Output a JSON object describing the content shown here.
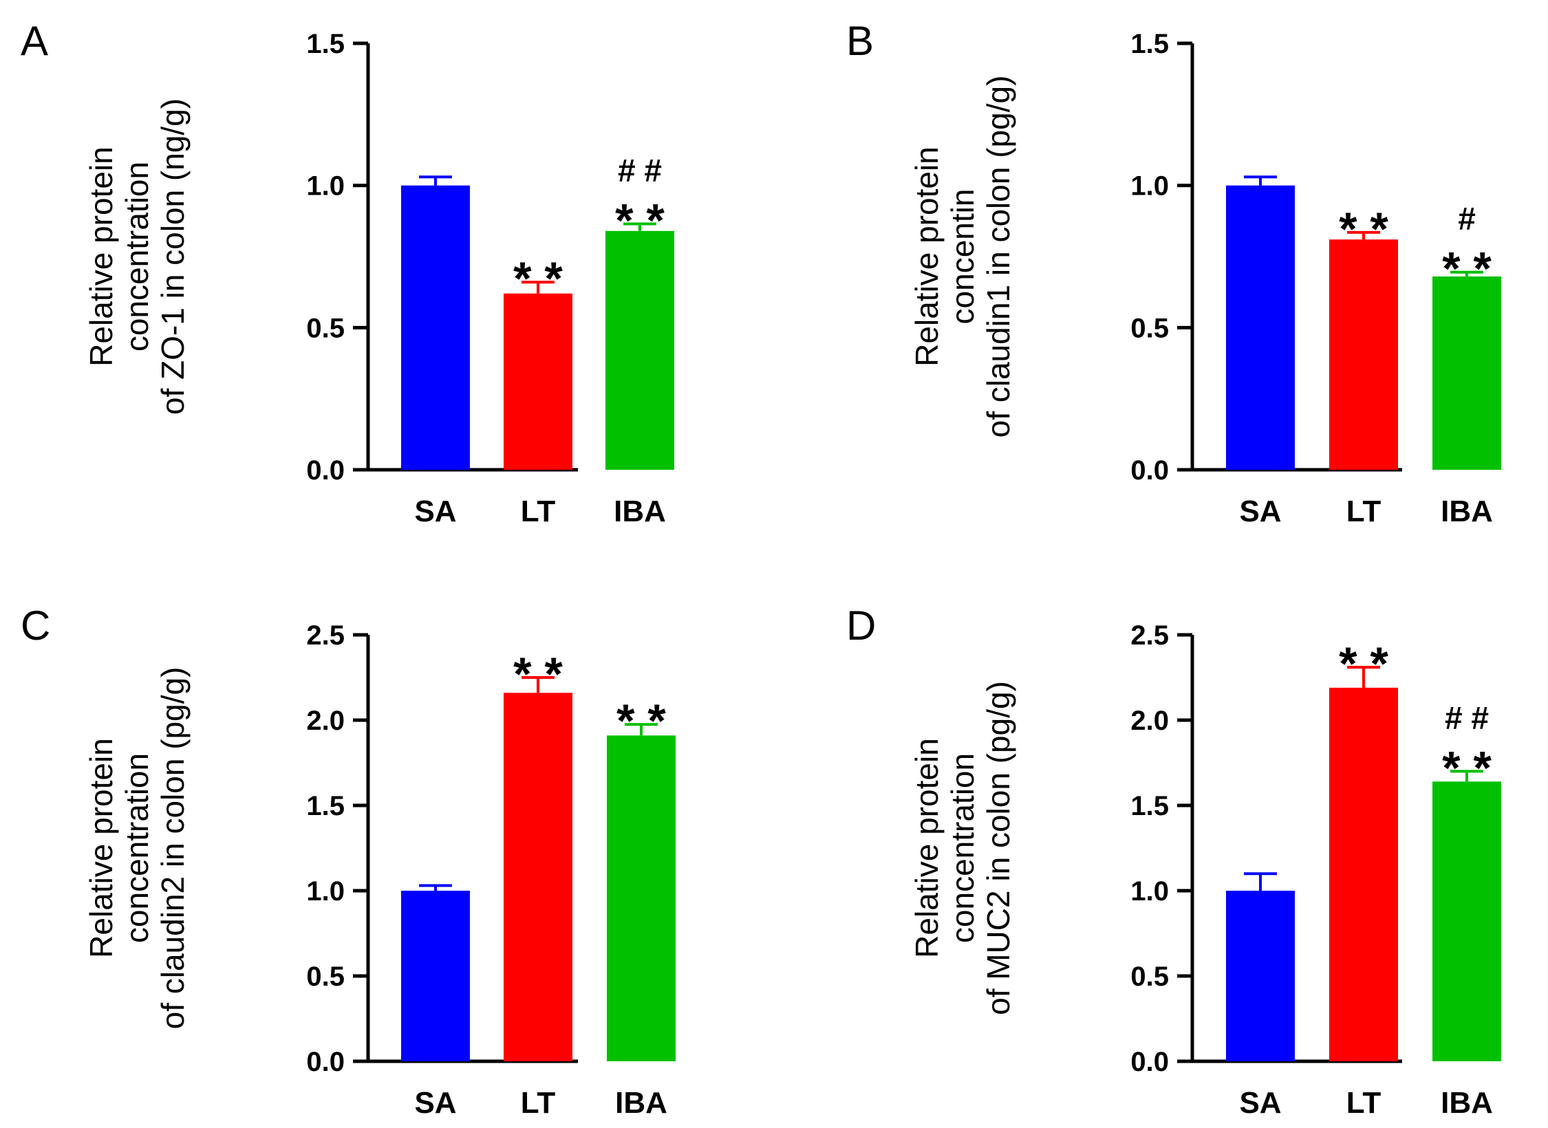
{
  "chart_data": [
    {
      "panel": "A",
      "type": "bar",
      "categories": [
        "SA",
        "LT",
        "IBA"
      ],
      "values": [
        1.0,
        0.62,
        0.84
      ],
      "errors": [
        0.03,
        0.04,
        0.025
      ],
      "colors": [
        "#0000ff",
        "#ff0000",
        "#00c000"
      ],
      "ylabel_lines": [
        "Relative protein",
        "concentration",
        "of ZO-1 in colon  (ng/g)"
      ],
      "ylim": [
        0,
        1.5
      ],
      "yticks": [
        "0.0",
        "0.5",
        "1.0",
        "1.5"
      ],
      "significance": [
        "",
        "* *",
        "* *"
      ],
      "hash_marks": [
        "",
        "",
        "# #"
      ]
    },
    {
      "panel": "B",
      "type": "bar",
      "categories": [
        "SA",
        "LT",
        "IBA"
      ],
      "values": [
        1.0,
        0.81,
        0.68
      ],
      "errors": [
        0.03,
        0.025,
        0.015
      ],
      "colors": [
        "#0000ff",
        "#ff0000",
        "#00c000"
      ],
      "ylabel_lines": [
        "Relative protein",
        "concentin",
        "of claudin1 in colon (pg/g)"
      ],
      "ylim": [
        0,
        1.5
      ],
      "yticks": [
        "0.0",
        "0.5",
        "1.0",
        "1.5"
      ],
      "significance": [
        "",
        "* *",
        "* *"
      ],
      "hash_marks": [
        "",
        "",
        "#"
      ]
    },
    {
      "panel": "C",
      "type": "bar",
      "categories": [
        "SA",
        "LT",
        "IBA"
      ],
      "values": [
        1.0,
        2.16,
        1.91
      ],
      "errors": [
        0.03,
        0.09,
        0.065
      ],
      "colors": [
        "#0000ff",
        "#ff0000",
        "#00c000"
      ],
      "ylabel_lines": [
        "Relative protein",
        "concentration",
        "of claudin2 in colon (pg/g)"
      ],
      "ylim": [
        0,
        2.5
      ],
      "yticks": [
        "0.0",
        "0.5",
        "1.0",
        "1.5",
        "2.0",
        "2.5"
      ],
      "significance": [
        "",
        "* *",
        "* *"
      ],
      "hash_marks": [
        "",
        "",
        ""
      ]
    },
    {
      "panel": "D",
      "type": "bar",
      "categories": [
        "SA",
        "LT",
        "IBA"
      ],
      "values": [
        1.0,
        2.19,
        1.64
      ],
      "errors": [
        0.1,
        0.12,
        0.06
      ],
      "colors": [
        "#0000ff",
        "#ff0000",
        "#00c000"
      ],
      "ylabel_lines": [
        "Relative protein",
        "concentration",
        "of MUC2 in colon  (pg/g)"
      ],
      "ylim": [
        0,
        2.5
      ],
      "yticks": [
        "0.0",
        "0.5",
        "1.0",
        "1.5",
        "2.0",
        "2.5"
      ],
      "significance": [
        "",
        "* *",
        "* *"
      ],
      "hash_marks": [
        "",
        "",
        "# #"
      ]
    }
  ]
}
